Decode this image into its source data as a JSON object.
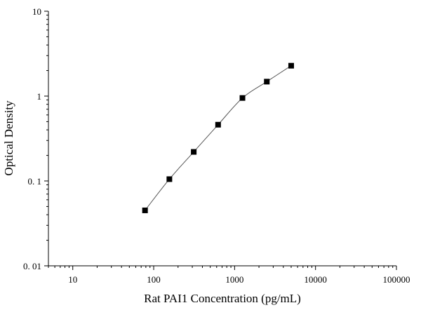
{
  "chart_data": {
    "type": "scatter",
    "xlabel": "Rat PAI1 Concentration (pg/mL)",
    "ylabel": "Optical Density",
    "x_scale": "log",
    "y_scale": "log",
    "xlim": [
      5,
      100000
    ],
    "ylim": [
      0.01,
      10
    ],
    "x_tick_values": [
      10,
      100,
      1000,
      10000,
      100000
    ],
    "x_tick_labels": [
      "10",
      "100",
      "1000",
      "10000",
      "100000"
    ],
    "y_tick_values": [
      0.01,
      0.1,
      1,
      10
    ],
    "y_tick_labels": [
      "0. 01",
      "0. 1",
      "1",
      "10"
    ],
    "grid": false,
    "series": [
      {
        "x": [
          78.125,
          156.25,
          312.5,
          625,
          1250,
          2500,
          5000
        ],
        "y": [
          0.045,
          0.105,
          0.22,
          0.46,
          0.95,
          1.48,
          2.28
        ],
        "marker": "square",
        "line": "smooth"
      }
    ],
    "colors": {
      "axis": "#000000",
      "marker": "#000000",
      "line": "#555555"
    }
  }
}
